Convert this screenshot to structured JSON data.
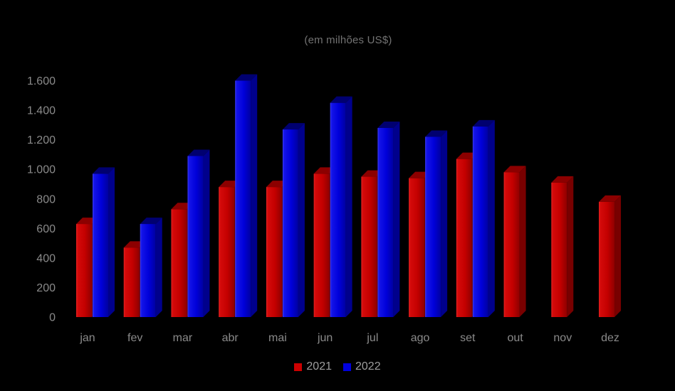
{
  "title": "(em milhões US$)",
  "colors": {
    "background": "#000000",
    "series_2021": "#cc0000",
    "series_2022": "#0000dd",
    "axis_text": "#8a8a8a",
    "title_text": "#737373",
    "legend_text": "#9e9e9e"
  },
  "legend": {
    "items": [
      {
        "label": "2021",
        "color": "#cc0000"
      },
      {
        "label": "2022",
        "color": "#0000dd"
      }
    ]
  },
  "chart_data": {
    "type": "bar",
    "title": "(em milhões US$)",
    "xlabel": "",
    "ylabel": "",
    "categories": [
      "jan",
      "fev",
      "mar",
      "abr",
      "mai",
      "jun",
      "jul",
      "ago",
      "set",
      "out",
      "nov",
      "dez"
    ],
    "series": [
      {
        "name": "2021",
        "color": "#cc0000",
        "values": [
          630,
          470,
          730,
          880,
          880,
          970,
          950,
          940,
          1070,
          980,
          910,
          780
        ]
      },
      {
        "name": "2022",
        "color": "#0000dd",
        "values": [
          970,
          630,
          1090,
          1600,
          1270,
          1450,
          1280,
          1220,
          1290,
          null,
          null,
          null
        ]
      }
    ],
    "ylim": [
      0,
      1600
    ],
    "ytick_step": 200,
    "ytick_labels": [
      "0",
      "200",
      "400",
      "600",
      "800",
      "1.000",
      "1.200",
      "1.400",
      "1.600"
    ],
    "grid": false,
    "legend_position": "bottom",
    "style": "3d-effect-bars"
  }
}
